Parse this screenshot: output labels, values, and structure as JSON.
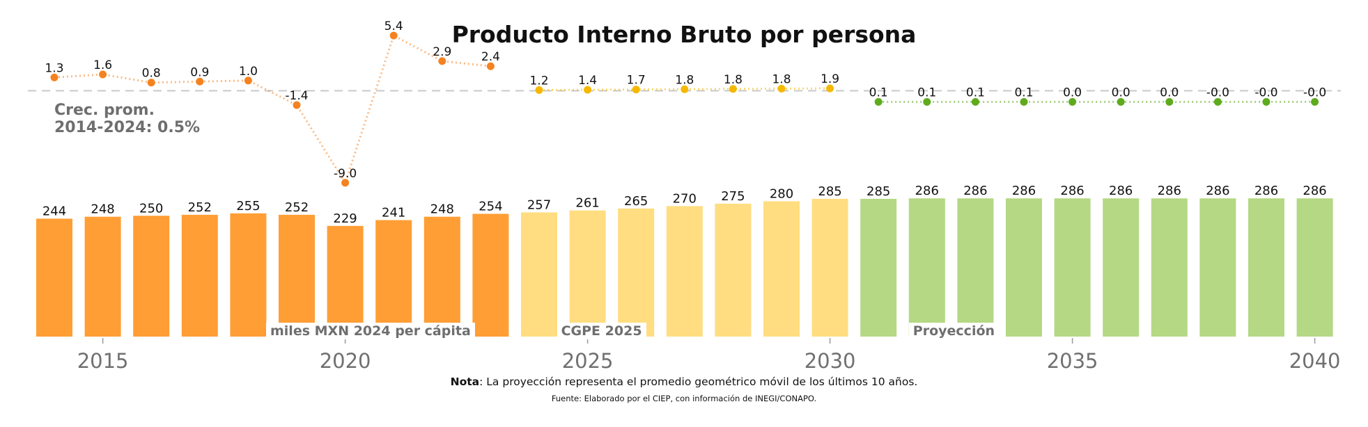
{
  "title": "Producto Interno Bruto por persona",
  "avg_label": {
    "line1": "Crec. prom.",
    "line2": "2014-2024: 0.5%"
  },
  "note": {
    "bold": "Nota",
    "text": ": La proyección representa el promedio geométrico móvil de los últimos 10 años."
  },
  "source": "Fuente: Elaborado por el CIEP, con información de INEGI/CONAPO.",
  "segment_labels": {
    "historic": "miles MXN 2024 per cápita",
    "cgpe": "CGPE 2025",
    "projection": "Proyección"
  },
  "colors": {
    "historic_bar": "#FF9E35",
    "cgpe_bar": "#FFDD80",
    "projection_bar": "#B4D884",
    "historic_line": "#F58220",
    "cgpe_line": "#F5B800",
    "projection_line": "#5DAB1C",
    "zero_line": "#c8c8c8",
    "axis_text": "#707070"
  },
  "chart_data": {
    "type": "bar",
    "x": [
      2014,
      2015,
      2016,
      2017,
      2018,
      2019,
      2020,
      2021,
      2022,
      2023,
      2024,
      2025,
      2026,
      2027,
      2028,
      2029,
      2030,
      2031,
      2032,
      2033,
      2034,
      2035,
      2036,
      2037,
      2038,
      2039,
      2040
    ],
    "x_ticks": [
      2015,
      2020,
      2025,
      2030,
      2035,
      2040
    ],
    "segments": [
      {
        "name": "miles MXN 2024 per cápita",
        "from": 2014,
        "to": 2023
      },
      {
        "name": "CGPE 2025",
        "from": 2024,
        "to": 2030
      },
      {
        "name": "Proyección",
        "from": 2031,
        "to": 2040
      }
    ],
    "bar_values": [
      244,
      248,
      250,
      252,
      255,
      252,
      229,
      241,
      248,
      254,
      257,
      261,
      265,
      270,
      275,
      280,
      285,
      285,
      286,
      286,
      286,
      286,
      286,
      286,
      286,
      286,
      286
    ],
    "growth_labels": [
      "1.3",
      "1.6",
      "0.8",
      "0.9",
      "1.0",
      "-1.4",
      "-9.0",
      "5.4",
      "2.9",
      "2.4",
      "1.2",
      "1.4",
      "1.7",
      "1.8",
      "1.8",
      "1.8",
      "1.9",
      "0.1",
      "0.1",
      "0.1",
      "0.1",
      "0.0",
      "0.0",
      "0.0",
      "-0.0",
      "-0.0",
      "-0.0"
    ],
    "growth_values": [
      1.3,
      1.6,
      0.8,
      0.9,
      1.0,
      -1.4,
      -9.0,
      5.4,
      2.9,
      2.4,
      1.2,
      1.4,
      1.7,
      1.8,
      1.8,
      1.8,
      1.9,
      0.1,
      0.1,
      0.1,
      0.1,
      0.0,
      0.0,
      0.0,
      -0.0,
      -0.0,
      -0.0
    ],
    "growth_display_level": [
      1.3,
      1.6,
      0.8,
      0.9,
      1.0,
      -1.4,
      -9.0,
      5.4,
      2.9,
      2.4,
      0.0,
      0.0,
      0.0,
      0.0,
      0.0,
      0.0,
      0.0,
      -0.0,
      -0.0,
      -0.0,
      -0.0,
      -0.0,
      -0.0,
      -0.0,
      -0.0,
      -0.0,
      -0.0
    ]
  }
}
